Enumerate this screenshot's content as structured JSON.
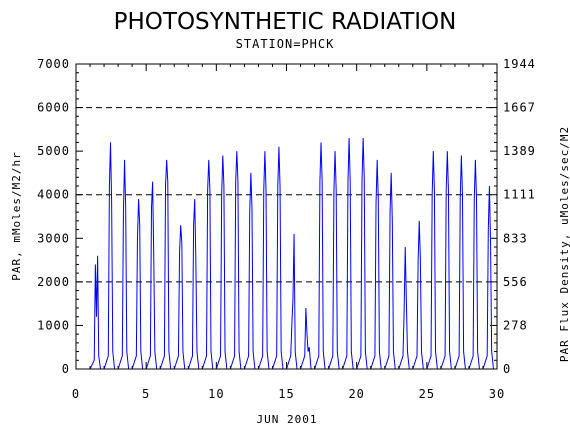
{
  "chart_data": {
    "type": "line",
    "title": "PHOTOSYNTHETIC RADIATION",
    "subtitle": "STATION=PHCK",
    "xlabel": "JUN 2001",
    "ylabel": "PAR, mMoles/M2/hr",
    "ylabel_right": "PAR Flux Density, uMoles/sec/M2",
    "xlim": [
      0,
      30
    ],
    "ylim": [
      0,
      7000
    ],
    "x_ticks": [
      "0",
      "5",
      "10",
      "15",
      "20",
      "25",
      "30"
    ],
    "y_ticks": [
      "0",
      "1000",
      "2000",
      "3000",
      "4000",
      "5000",
      "6000",
      "7000"
    ],
    "y_ticks_right": [
      "0",
      "278",
      "556",
      "833",
      "1111",
      "1389",
      "1667",
      "1944"
    ],
    "grid_lines_y": [
      2000,
      4000,
      6000
    ],
    "line_color": "#0000ff",
    "series": [
      {
        "x": [
          1,
          1.3,
          1.38,
          1.46,
          1.54,
          1.62,
          1.75,
          2,
          2.3,
          2.38,
          2.46,
          2.54,
          2.62,
          2.75,
          3,
          3.3,
          3.38,
          3.46,
          3.54,
          3.62,
          3.75,
          4,
          4.3,
          4.38,
          4.46,
          4.54,
          4.62,
          4.75,
          5,
          5.3,
          5.38,
          5.46,
          5.54,
          5.62,
          5.75,
          6,
          6.3,
          6.38,
          6.46,
          6.54,
          6.62,
          6.75,
          7,
          7.3,
          7.38,
          7.46,
          7.54,
          7.62,
          7.75,
          8,
          8.3,
          8.38,
          8.46,
          8.54,
          8.62,
          8.75,
          9,
          9.3,
          9.38,
          9.46,
          9.54,
          9.62,
          9.75,
          10,
          10.3,
          10.38,
          10.46,
          10.54,
          10.62,
          10.75,
          11,
          11.3,
          11.38,
          11.46,
          11.54,
          11.62,
          11.75,
          12,
          12.3,
          12.38,
          12.46,
          12.54,
          12.62,
          12.75,
          13,
          13.3,
          13.38,
          13.46,
          13.54,
          13.62,
          13.75,
          14,
          14.3,
          14.38,
          14.46,
          14.54,
          14.62,
          14.75,
          15,
          15.3,
          15.38,
          15.46,
          15.54,
          15.62,
          15.75,
          16,
          16.3,
          16.38,
          16.46,
          16.54,
          16.62,
          16.75,
          17,
          17.3,
          17.38,
          17.46,
          17.54,
          17.62,
          17.75,
          18,
          18.3,
          18.38,
          18.46,
          18.54,
          18.62,
          18.75,
          19,
          19.3,
          19.38,
          19.46,
          19.54,
          19.62,
          19.75,
          20,
          20.3,
          20.38,
          20.46,
          20.54,
          20.62,
          20.75,
          21,
          21.3,
          21.38,
          21.46,
          21.54,
          21.62,
          21.75,
          22,
          22.3,
          22.38,
          22.46,
          22.54,
          22.62,
          22.75,
          23,
          23.3,
          23.38,
          23.46,
          23.54,
          23.62,
          23.75,
          24,
          24.3,
          24.38,
          24.46,
          24.54,
          24.62,
          24.75,
          25,
          25.3,
          25.38,
          25.46,
          25.54,
          25.62,
          25.75,
          26,
          26.3,
          26.38,
          26.46,
          26.54,
          26.62,
          26.75,
          27,
          27.3,
          27.38,
          27.46,
          27.54,
          27.62,
          27.75,
          28,
          28.3,
          28.38,
          28.46,
          28.54,
          28.62,
          28.75,
          29,
          29.3,
          29.38,
          29.46,
          29.54,
          29.62,
          29.75
        ],
        "y": [
          0,
          200,
          2400,
          1200,
          2600,
          300,
          0,
          0,
          300,
          4200,
          5200,
          3800,
          400,
          0,
          0,
          300,
          3600,
          4800,
          3700,
          400,
          0,
          0,
          300,
          3000,
          3900,
          3300,
          400,
          0,
          0,
          300,
          3700,
          4300,
          2600,
          400,
          0,
          0,
          300,
          4200,
          4800,
          4300,
          400,
          0,
          0,
          300,
          2700,
          3300,
          2900,
          400,
          0,
          0,
          300,
          3300,
          3900,
          2500,
          400,
          0,
          0,
          300,
          4100,
          4800,
          4100,
          400,
          0,
          0,
          300,
          4000,
          4900,
          4200,
          400,
          0,
          0,
          300,
          4300,
          5000,
          4300,
          400,
          0,
          0,
          300,
          3600,
          4500,
          3700,
          400,
          0,
          0,
          300,
          4100,
          5000,
          4100,
          400,
          0,
          0,
          300,
          4200,
          5100,
          4200,
          400,
          0,
          0,
          300,
          1000,
          1600,
          3100,
          400,
          0,
          0,
          300,
          1400,
          800,
          400,
          500,
          0,
          0,
          300,
          4300,
          5200,
          4300,
          400,
          0,
          0,
          300,
          4100,
          5000,
          4100,
          400,
          0,
          0,
          300,
          4300,
          5300,
          4300,
          400,
          0,
          0,
          300,
          4300,
          5300,
          4400,
          400,
          0,
          0,
          300,
          3800,
          4800,
          3900,
          400,
          0,
          0,
          300,
          3600,
          4500,
          3400,
          400,
          0,
          0,
          300,
          1300,
          2800,
          1600,
          400,
          0,
          0,
          300,
          2500,
          3400,
          2500,
          400,
          0,
          0,
          300,
          4000,
          5000,
          4100,
          400,
          0,
          0,
          300,
          4100,
          5000,
          4100,
          400,
          0,
          0,
          300,
          3900,
          4900,
          4000,
          400,
          0,
          0,
          300,
          3900,
          4800,
          3900,
          400,
          0,
          0,
          300,
          3200,
          4200,
          2900,
          400,
          0
        ]
      }
    ]
  }
}
